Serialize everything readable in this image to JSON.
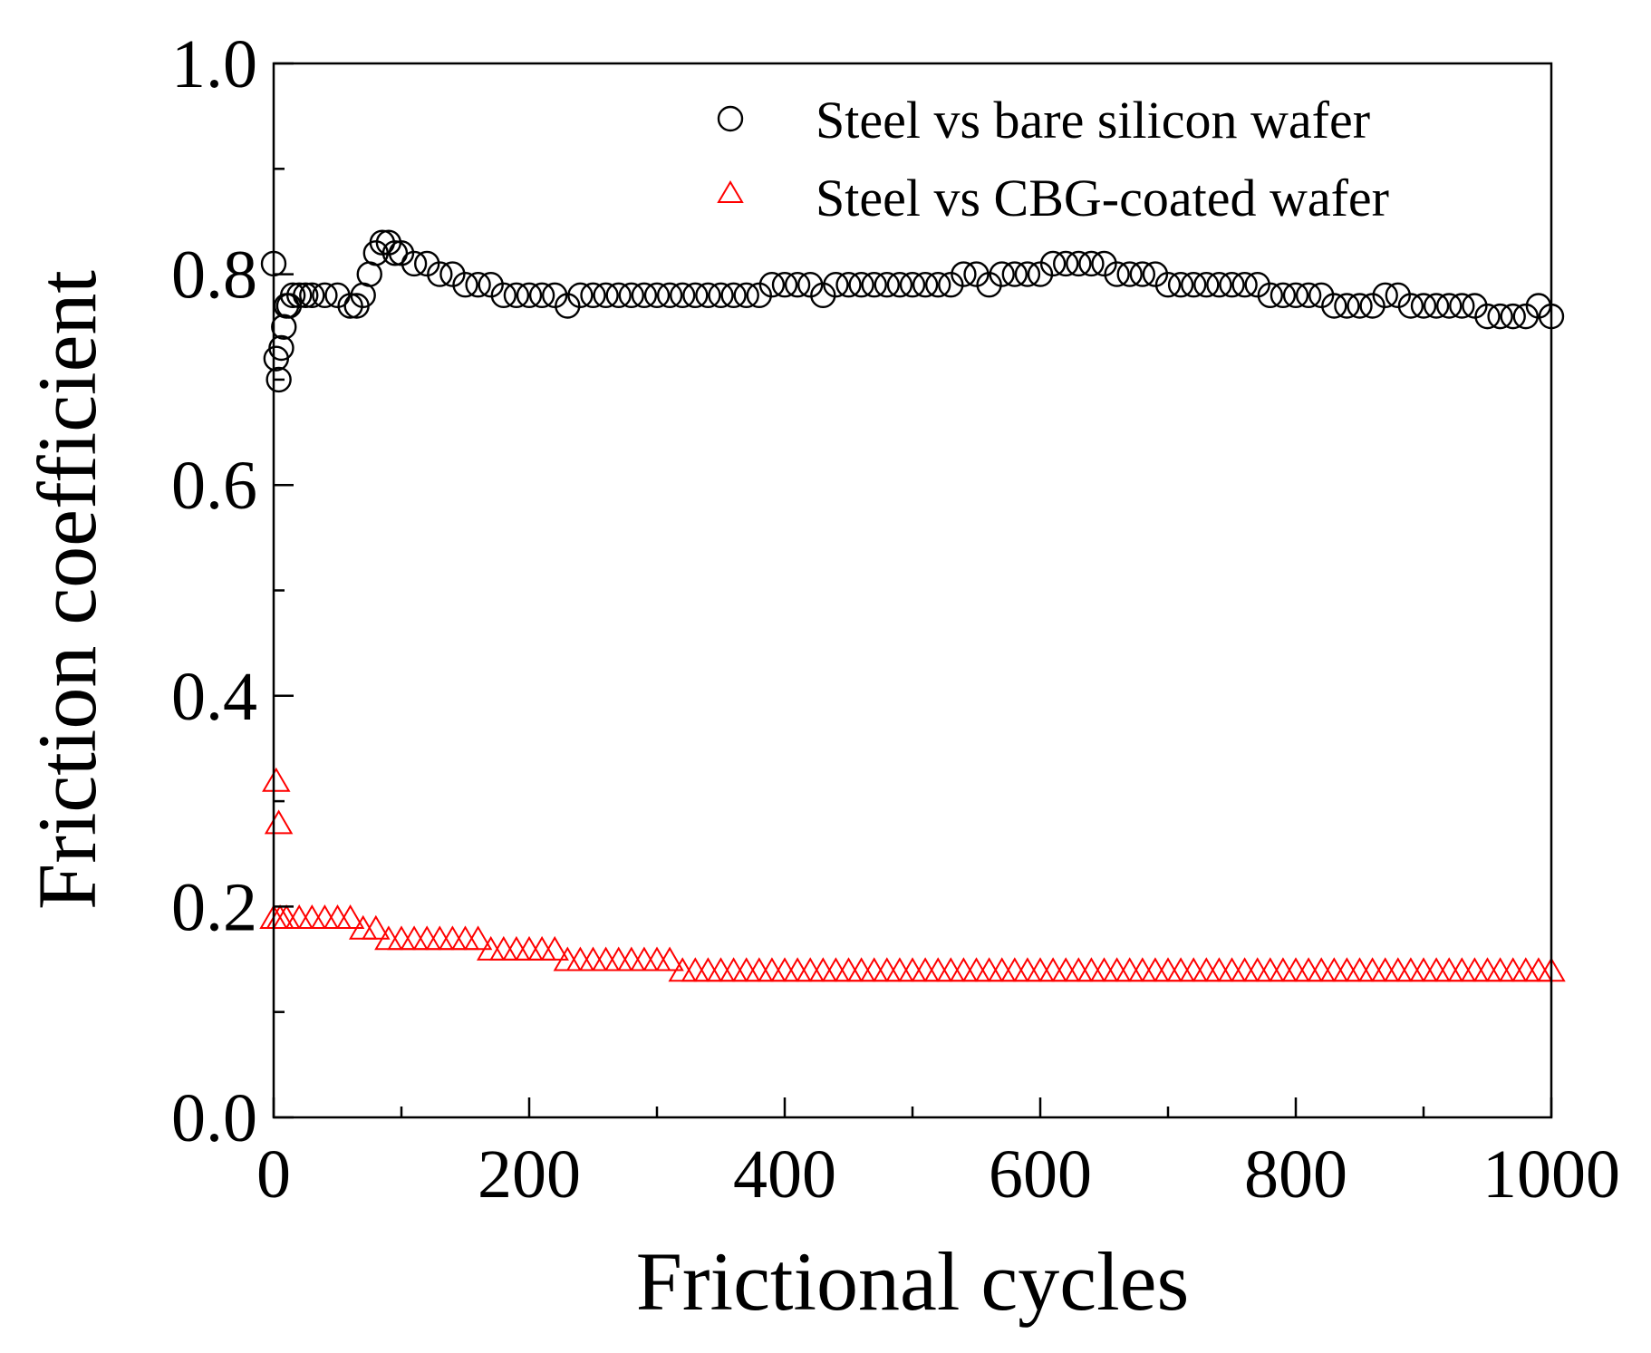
{
  "chart_data": {
    "type": "scatter",
    "title": "",
    "xlabel": "Frictional cycles",
    "ylabel": "Friction coefficient",
    "xlim": [
      0,
      1000
    ],
    "ylim": [
      0.0,
      1.0
    ],
    "x_ticks": [
      0,
      200,
      400,
      600,
      800,
      1000
    ],
    "x_tick_labels": [
      "0",
      "200",
      "400",
      "600",
      "800",
      "1000"
    ],
    "y_ticks": [
      0.0,
      0.2,
      0.4,
      0.6,
      0.8,
      1.0
    ],
    "y_tick_labels": [
      "0.0",
      "0.2",
      "0.4",
      "0.6",
      "0.8",
      "1.0"
    ],
    "x_minor_step": 100,
    "y_minor_step": 0.1,
    "grid": false,
    "legend_position": "top-right",
    "series": [
      {
        "name": "Steel vs bare silicon wafer",
        "marker": "circle",
        "color": "#000000",
        "x": [
          0,
          2,
          4,
          6,
          8,
          10,
          12,
          15,
          20,
          25,
          30,
          40,
          50,
          60,
          65,
          70,
          75,
          80,
          85,
          90,
          95,
          100,
          110,
          120,
          130,
          140,
          150,
          160,
          170,
          180,
          190,
          200,
          210,
          220,
          230,
          240,
          250,
          260,
          270,
          280,
          290,
          300,
          310,
          320,
          330,
          340,
          350,
          360,
          370,
          380,
          390,
          400,
          410,
          420,
          430,
          440,
          450,
          460,
          470,
          480,
          490,
          500,
          510,
          520,
          530,
          540,
          550,
          560,
          570,
          580,
          590,
          600,
          610,
          620,
          630,
          640,
          650,
          660,
          670,
          680,
          690,
          700,
          710,
          720,
          730,
          740,
          750,
          760,
          770,
          780,
          790,
          800,
          810,
          820,
          830,
          840,
          850,
          860,
          870,
          880,
          890,
          900,
          910,
          920,
          930,
          940,
          950,
          960,
          970,
          980,
          990,
          1000
        ],
        "y": [
          0.81,
          0.72,
          0.7,
          0.73,
          0.75,
          0.77,
          0.77,
          0.78,
          0.78,
          0.78,
          0.78,
          0.78,
          0.78,
          0.77,
          0.77,
          0.78,
          0.8,
          0.82,
          0.83,
          0.83,
          0.82,
          0.82,
          0.81,
          0.81,
          0.8,
          0.8,
          0.79,
          0.79,
          0.79,
          0.78,
          0.78,
          0.78,
          0.78,
          0.78,
          0.77,
          0.78,
          0.78,
          0.78,
          0.78,
          0.78,
          0.78,
          0.78,
          0.78,
          0.78,
          0.78,
          0.78,
          0.78,
          0.78,
          0.78,
          0.78,
          0.79,
          0.79,
          0.79,
          0.79,
          0.78,
          0.79,
          0.79,
          0.79,
          0.79,
          0.79,
          0.79,
          0.79,
          0.79,
          0.79,
          0.79,
          0.8,
          0.8,
          0.79,
          0.8,
          0.8,
          0.8,
          0.8,
          0.81,
          0.81,
          0.81,
          0.81,
          0.81,
          0.8,
          0.8,
          0.8,
          0.8,
          0.79,
          0.79,
          0.79,
          0.79,
          0.79,
          0.79,
          0.79,
          0.79,
          0.78,
          0.78,
          0.78,
          0.78,
          0.78,
          0.77,
          0.77,
          0.77,
          0.77,
          0.78,
          0.78,
          0.77,
          0.77,
          0.77,
          0.77,
          0.77,
          0.77,
          0.76,
          0.76,
          0.76,
          0.76,
          0.77,
          0.76
        ]
      },
      {
        "name": "Steel vs CBG-coated wafer",
        "marker": "triangle",
        "color": "#ff0000",
        "x": [
          2,
          4,
          0,
          5,
          10,
          20,
          30,
          40,
          50,
          60,
          70,
          80,
          90,
          100,
          110,
          120,
          130,
          140,
          150,
          160,
          170,
          180,
          190,
          200,
          210,
          220,
          230,
          240,
          250,
          260,
          270,
          280,
          290,
          300,
          310,
          320,
          330,
          340,
          350,
          360,
          370,
          380,
          390,
          400,
          410,
          420,
          430,
          440,
          450,
          460,
          470,
          480,
          490,
          500,
          510,
          520,
          530,
          540,
          550,
          560,
          570,
          580,
          590,
          600,
          610,
          620,
          630,
          640,
          650,
          660,
          670,
          680,
          690,
          700,
          710,
          720,
          730,
          740,
          750,
          760,
          770,
          780,
          790,
          800,
          810,
          820,
          830,
          840,
          850,
          860,
          870,
          880,
          890,
          900,
          910,
          920,
          930,
          940,
          950,
          960,
          970,
          980,
          990,
          1000
        ],
        "y": [
          0.32,
          0.28,
          0.19,
          0.19,
          0.19,
          0.19,
          0.19,
          0.19,
          0.19,
          0.19,
          0.18,
          0.18,
          0.17,
          0.17,
          0.17,
          0.17,
          0.17,
          0.17,
          0.17,
          0.17,
          0.16,
          0.16,
          0.16,
          0.16,
          0.16,
          0.16,
          0.15,
          0.15,
          0.15,
          0.15,
          0.15,
          0.15,
          0.15,
          0.15,
          0.15,
          0.14,
          0.14,
          0.14,
          0.14,
          0.14,
          0.14,
          0.14,
          0.14,
          0.14,
          0.14,
          0.14,
          0.14,
          0.14,
          0.14,
          0.14,
          0.14,
          0.14,
          0.14,
          0.14,
          0.14,
          0.14,
          0.14,
          0.14,
          0.14,
          0.14,
          0.14,
          0.14,
          0.14,
          0.14,
          0.14,
          0.14,
          0.14,
          0.14,
          0.14,
          0.14,
          0.14,
          0.14,
          0.14,
          0.14,
          0.14,
          0.14,
          0.14,
          0.14,
          0.14,
          0.14,
          0.14,
          0.14,
          0.14,
          0.14,
          0.14,
          0.14,
          0.14,
          0.14,
          0.14,
          0.14,
          0.14,
          0.14,
          0.14,
          0.14,
          0.14,
          0.14,
          0.14,
          0.14,
          0.14,
          0.14,
          0.14,
          0.14,
          0.14,
          0.14
        ]
      }
    ]
  }
}
